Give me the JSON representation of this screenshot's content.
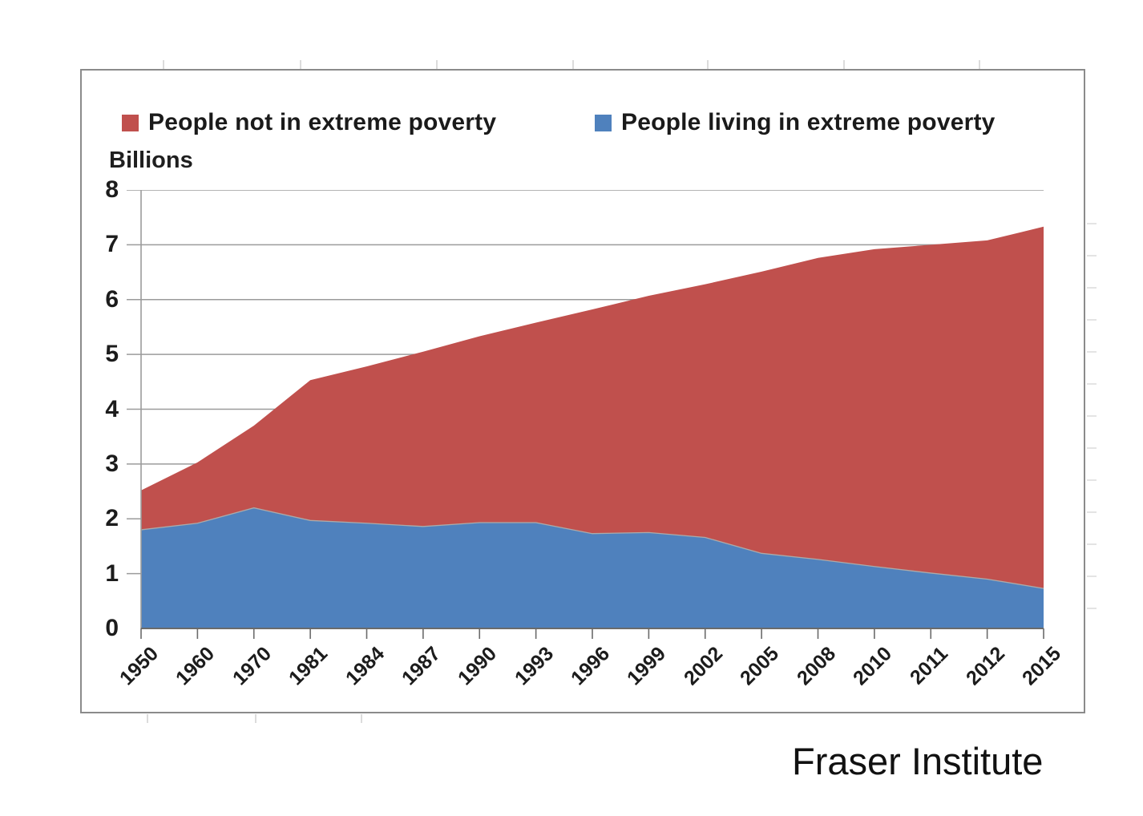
{
  "page": {
    "credit": "Fraser Institute"
  },
  "chart_data": {
    "type": "area",
    "stacked": true,
    "title": "",
    "unit_label": "Billions",
    "xlabel": "",
    "ylabel": "Billions",
    "ylim": [
      0,
      8
    ],
    "yticks": [
      8,
      7,
      6,
      5,
      4,
      3,
      2,
      1,
      0
    ],
    "grid": true,
    "legend_position": "top-inside",
    "x_tick_rotation_deg": -45,
    "categories": [
      "1950",
      "1960",
      "1970",
      "1981",
      "1984",
      "1987",
      "1990",
      "1993",
      "1996",
      "1999",
      "2002",
      "2005",
      "2008",
      "2010",
      "2011",
      "2012",
      "2015"
    ],
    "series": [
      {
        "name": "People not in extreme poverty",
        "color": "#c0504d",
        "stack_layer": "top",
        "values": [
          0.72,
          1.11,
          1.5,
          2.56,
          2.86,
          3.19,
          3.4,
          3.65,
          4.09,
          4.32,
          4.62,
          5.14,
          5.5,
          5.79,
          5.99,
          6.18,
          6.6
        ]
      },
      {
        "name": "People living in extreme poverty",
        "color": "#4f81bd",
        "stack_layer": "bottom",
        "values": [
          1.8,
          1.92,
          2.2,
          1.97,
          1.92,
          1.86,
          1.93,
          1.93,
          1.73,
          1.75,
          1.66,
          1.37,
          1.26,
          1.13,
          1.01,
          0.9,
          0.73
        ]
      }
    ],
    "stacked_totals": [
      2.52,
      3.03,
      3.7,
      4.53,
      4.78,
      5.05,
      5.33,
      5.58,
      5.82,
      6.07,
      6.28,
      6.51,
      6.76,
      6.92,
      7.0,
      7.08,
      7.33
    ]
  }
}
